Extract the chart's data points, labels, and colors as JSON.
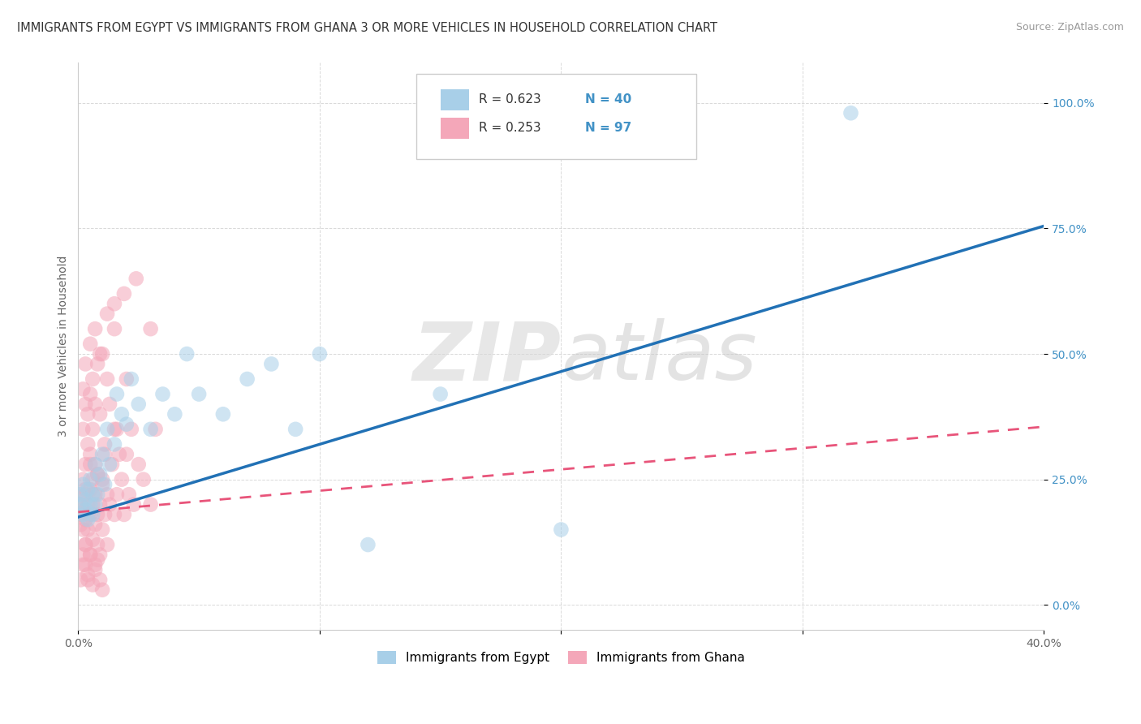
{
  "title": "IMMIGRANTS FROM EGYPT VS IMMIGRANTS FROM GHANA 3 OR MORE VEHICLES IN HOUSEHOLD CORRELATION CHART",
  "source": "Source: ZipAtlas.com",
  "ylabel": "3 or more Vehicles in Household",
  "legend_egypt": "Immigrants from Egypt",
  "legend_ghana": "Immigrants from Ghana",
  "R_egypt": 0.623,
  "N_egypt": 40,
  "R_ghana": 0.253,
  "N_ghana": 97,
  "xlim": [
    0.0,
    0.4
  ],
  "ylim": [
    -0.05,
    1.08
  ],
  "xticks": [
    0.0,
    0.1,
    0.2,
    0.3,
    0.4
  ],
  "yticks": [
    0.0,
    0.25,
    0.5,
    0.75,
    1.0
  ],
  "ytick_labels": [
    "0.0%",
    "25.0%",
    "50.0%",
    "75.0%",
    "100.0%"
  ],
  "xtick_labels": [
    "0.0%",
    "",
    "",
    "",
    "40.0%"
  ],
  "color_egypt": "#a8cfe8",
  "color_ghana": "#f4a7b9",
  "line_egypt": "#2171b5",
  "line_ghana": "#e8547a",
  "tick_color": "#4292c6",
  "background": "#ffffff",
  "grid_color": "#d0d0d0",
  "watermark_color": "#e0e0e0",
  "egypt_x": [
    0.001,
    0.001,
    0.002,
    0.002,
    0.003,
    0.003,
    0.004,
    0.004,
    0.005,
    0.005,
    0.006,
    0.006,
    0.007,
    0.007,
    0.008,
    0.009,
    0.01,
    0.011,
    0.012,
    0.013,
    0.015,
    0.016,
    0.018,
    0.02,
    0.022,
    0.025,
    0.03,
    0.035,
    0.04,
    0.045,
    0.05,
    0.06,
    0.07,
    0.08,
    0.09,
    0.1,
    0.12,
    0.15,
    0.2,
    0.32
  ],
  "egypt_y": [
    0.2,
    0.22,
    0.18,
    0.24,
    0.19,
    0.21,
    0.17,
    0.23,
    0.2,
    0.25,
    0.18,
    0.22,
    0.2,
    0.28,
    0.22,
    0.26,
    0.3,
    0.24,
    0.35,
    0.28,
    0.32,
    0.42,
    0.38,
    0.36,
    0.45,
    0.4,
    0.35,
    0.42,
    0.38,
    0.5,
    0.42,
    0.38,
    0.45,
    0.48,
    0.35,
    0.5,
    0.12,
    0.42,
    0.15,
    0.98
  ],
  "ghana_x": [
    0.001,
    0.001,
    0.001,
    0.002,
    0.002,
    0.002,
    0.003,
    0.003,
    0.003,
    0.003,
    0.004,
    0.004,
    0.004,
    0.005,
    0.005,
    0.005,
    0.005,
    0.006,
    0.006,
    0.006,
    0.007,
    0.007,
    0.007,
    0.008,
    0.008,
    0.008,
    0.009,
    0.009,
    0.01,
    0.01,
    0.011,
    0.011,
    0.012,
    0.012,
    0.013,
    0.014,
    0.015,
    0.015,
    0.016,
    0.017,
    0.018,
    0.019,
    0.02,
    0.021,
    0.022,
    0.023,
    0.025,
    0.027,
    0.03,
    0.032,
    0.001,
    0.002,
    0.003,
    0.004,
    0.005,
    0.006,
    0.007,
    0.008,
    0.009,
    0.01,
    0.002,
    0.003,
    0.004,
    0.005,
    0.006,
    0.007,
    0.008,
    0.01,
    0.012,
    0.015,
    0.003,
    0.004,
    0.005,
    0.006,
    0.007,
    0.009,
    0.011,
    0.013,
    0.016,
    0.02,
    0.002,
    0.003,
    0.005,
    0.007,
    0.009,
    0.012,
    0.015,
    0.019,
    0.024,
    0.03,
    0.001,
    0.002,
    0.003,
    0.004,
    0.006,
    0.008,
    0.01
  ],
  "ghana_y": [
    0.2,
    0.22,
    0.18,
    0.15,
    0.25,
    0.1,
    0.17,
    0.12,
    0.22,
    0.08,
    0.15,
    0.2,
    0.05,
    0.18,
    0.23,
    0.1,
    0.28,
    0.13,
    0.2,
    0.25,
    0.16,
    0.08,
    0.22,
    0.18,
    0.12,
    0.26,
    0.1,
    0.2,
    0.15,
    0.25,
    0.18,
    0.3,
    0.22,
    0.12,
    0.2,
    0.28,
    0.18,
    0.35,
    0.22,
    0.3,
    0.25,
    0.18,
    0.3,
    0.22,
    0.35,
    0.2,
    0.28,
    0.25,
    0.2,
    0.35,
    0.05,
    0.08,
    0.12,
    0.06,
    0.1,
    0.04,
    0.07,
    0.09,
    0.05,
    0.03,
    0.35,
    0.4,
    0.38,
    0.42,
    0.45,
    0.4,
    0.48,
    0.5,
    0.45,
    0.55,
    0.28,
    0.32,
    0.3,
    0.35,
    0.28,
    0.38,
    0.32,
    0.4,
    0.35,
    0.45,
    0.43,
    0.48,
    0.52,
    0.55,
    0.5,
    0.58,
    0.6,
    0.62,
    0.65,
    0.55,
    0.16,
    0.19,
    0.23,
    0.18,
    0.22,
    0.26,
    0.24
  ],
  "egypt_line_x0": 0.0,
  "egypt_line_y0": 0.175,
  "egypt_line_x1": 0.4,
  "egypt_line_y1": 0.755,
  "ghana_line_x0": 0.0,
  "ghana_line_y0": 0.185,
  "ghana_line_x1": 0.4,
  "ghana_line_y1": 0.355
}
